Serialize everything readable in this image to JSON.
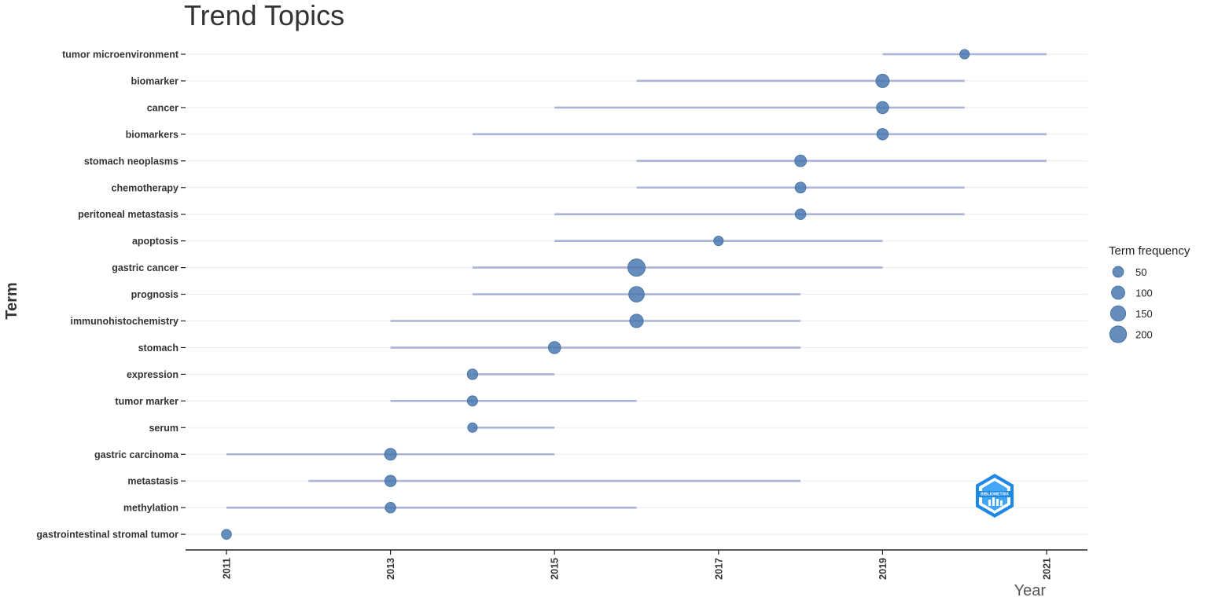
{
  "chart_data": {
    "type": "scatter",
    "title": "Trend Topics",
    "xlabel": "Year",
    "ylabel": "Term",
    "xlim": [
      2011,
      2021
    ],
    "x_ticks": [
      2011,
      2013,
      2015,
      2017,
      2019,
      2021
    ],
    "grid": "horizontal",
    "legend": {
      "title": "Term frequency",
      "placement": "right",
      "entries": [
        {
          "label": "50",
          "value": 50
        },
        {
          "label": "100",
          "value": 100
        },
        {
          "label": "150",
          "value": 150
        },
        {
          "label": "200",
          "value": 200
        }
      ]
    },
    "terms": [
      {
        "term": "tumor microenvironment",
        "start": 2019,
        "median": 2020,
        "end": 2021,
        "freq": 30
      },
      {
        "term": "biomarker",
        "start": 2016,
        "median": 2019,
        "end": 2020,
        "freq": 100
      },
      {
        "term": "cancer",
        "start": 2015,
        "median": 2019,
        "end": 2020,
        "freq": 75
      },
      {
        "term": "biomarkers",
        "start": 2014,
        "median": 2019,
        "end": 2021,
        "freq": 60
      },
      {
        "term": "stomach neoplasms",
        "start": 2016,
        "median": 2018,
        "end": 2021,
        "freq": 65
      },
      {
        "term": "chemotherapy",
        "start": 2016,
        "median": 2018,
        "end": 2020,
        "freq": 50
      },
      {
        "term": "peritoneal metastasis",
        "start": 2015,
        "median": 2018,
        "end": 2020,
        "freq": 45
      },
      {
        "term": "apoptosis",
        "start": 2015,
        "median": 2017,
        "end": 2019,
        "freq": 30
      },
      {
        "term": "gastric cancer",
        "start": 2014,
        "median": 2016,
        "end": 2019,
        "freq": 220
      },
      {
        "term": "prognosis",
        "start": 2014,
        "median": 2016,
        "end": 2018,
        "freq": 160
      },
      {
        "term": "immunohistochemistry",
        "start": 2013,
        "median": 2016,
        "end": 2018,
        "freq": 105
      },
      {
        "term": "stomach",
        "start": 2013,
        "median": 2015,
        "end": 2018,
        "freq": 75
      },
      {
        "term": "expression",
        "start": 2014,
        "median": 2014,
        "end": 2015,
        "freq": 45
      },
      {
        "term": "tumor marker",
        "start": 2013,
        "median": 2014,
        "end": 2016,
        "freq": 40
      },
      {
        "term": "serum",
        "start": 2014,
        "median": 2014,
        "end": 2015,
        "freq": 30
      },
      {
        "term": "gastric carcinoma",
        "start": 2011,
        "median": 2013,
        "end": 2015,
        "freq": 70
      },
      {
        "term": "metastasis",
        "start": 2012,
        "median": 2013,
        "end": 2018,
        "freq": 60
      },
      {
        "term": "methylation",
        "start": 2011,
        "median": 2013,
        "end": 2016,
        "freq": 45
      },
      {
        "term": "gastrointestinal stromal tumor",
        "start": 2011,
        "median": 2011,
        "end": 2011,
        "freq": 35
      }
    ]
  },
  "colors": {
    "point": "#4a79b0",
    "segment": "#aab4d6",
    "grid": "#ebebeb",
    "axis": "#222222",
    "logo_outer": "#1e88e5",
    "logo_inner": "#42a5f5"
  },
  "logo": {
    "icon": "bibliometrix-logo-icon",
    "text": "BIBLIOMETRIX"
  }
}
